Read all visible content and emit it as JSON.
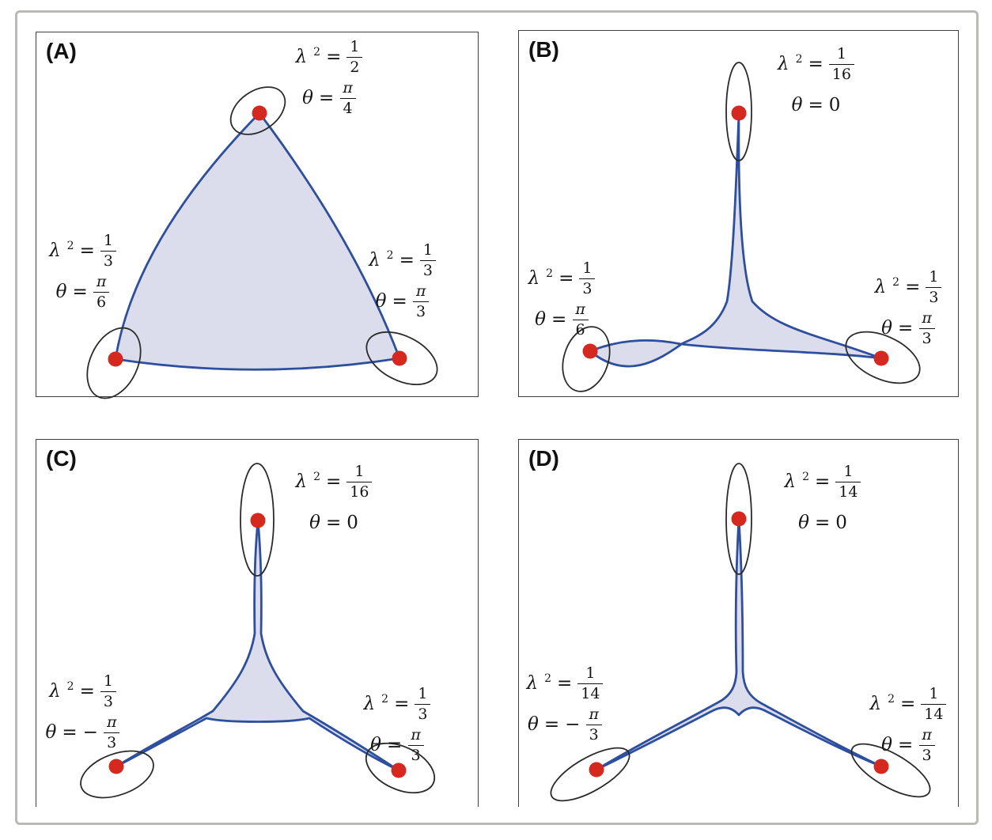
{
  "figure": {
    "symbols": {
      "lambda": "λ",
      "lambda_sup": "2",
      "theta": "θ",
      "equals": "=",
      "minus": "−"
    },
    "colors": {
      "shape_fill": "#dcddec",
      "shape_stroke": "#2d4f9e",
      "dot": "#d5281e",
      "ellipse_stroke": "#2b2b2b",
      "panel_border": "#3f3f3f",
      "outer_border": "#b9b9b5"
    },
    "panels": [
      {
        "letter": "(A)",
        "vertices": {
          "top": {
            "lambda_num": "1",
            "lambda_den": "2",
            "theta_sign": "",
            "theta_num": "π",
            "theta_den": "4",
            "theta_plain": ""
          },
          "left": {
            "lambda_num": "1",
            "lambda_den": "3",
            "theta_sign": "",
            "theta_num": "π",
            "theta_den": "6",
            "theta_plain": ""
          },
          "right": {
            "lambda_num": "1",
            "lambda_den": "3",
            "theta_sign": "",
            "theta_num": "π",
            "theta_den": "3",
            "theta_plain": ""
          }
        }
      },
      {
        "letter": "(B)",
        "vertices": {
          "top": {
            "lambda_num": "1",
            "lambda_den": "16",
            "theta_sign": "",
            "theta_num": "",
            "theta_den": "",
            "theta_plain": "0"
          },
          "left": {
            "lambda_num": "1",
            "lambda_den": "3",
            "theta_sign": "",
            "theta_num": "π",
            "theta_den": "6",
            "theta_plain": ""
          },
          "right": {
            "lambda_num": "1",
            "lambda_den": "3",
            "theta_sign": "",
            "theta_num": "π",
            "theta_den": "3",
            "theta_plain": ""
          }
        }
      },
      {
        "letter": "(C)",
        "vertices": {
          "top": {
            "lambda_num": "1",
            "lambda_den": "16",
            "theta_sign": "",
            "theta_num": "",
            "theta_den": "",
            "theta_plain": "0"
          },
          "left": {
            "lambda_num": "1",
            "lambda_den": "3",
            "theta_sign": "−",
            "theta_num": "π",
            "theta_den": "3",
            "theta_plain": ""
          },
          "right": {
            "lambda_num": "1",
            "lambda_den": "3",
            "theta_sign": "",
            "theta_num": "π",
            "theta_den": "3",
            "theta_plain": ""
          }
        }
      },
      {
        "letter": "(D)",
        "vertices": {
          "top": {
            "lambda_num": "1",
            "lambda_den": "14",
            "theta_sign": "",
            "theta_num": "",
            "theta_den": "",
            "theta_plain": "0"
          },
          "left": {
            "lambda_num": "1",
            "lambda_den": "14",
            "theta_sign": "−",
            "theta_num": "π",
            "theta_den": "3",
            "theta_plain": ""
          },
          "right": {
            "lambda_num": "1",
            "lambda_den": "14",
            "theta_sign": "",
            "theta_num": "π",
            "theta_den": "3",
            "theta_plain": ""
          }
        }
      }
    ]
  }
}
